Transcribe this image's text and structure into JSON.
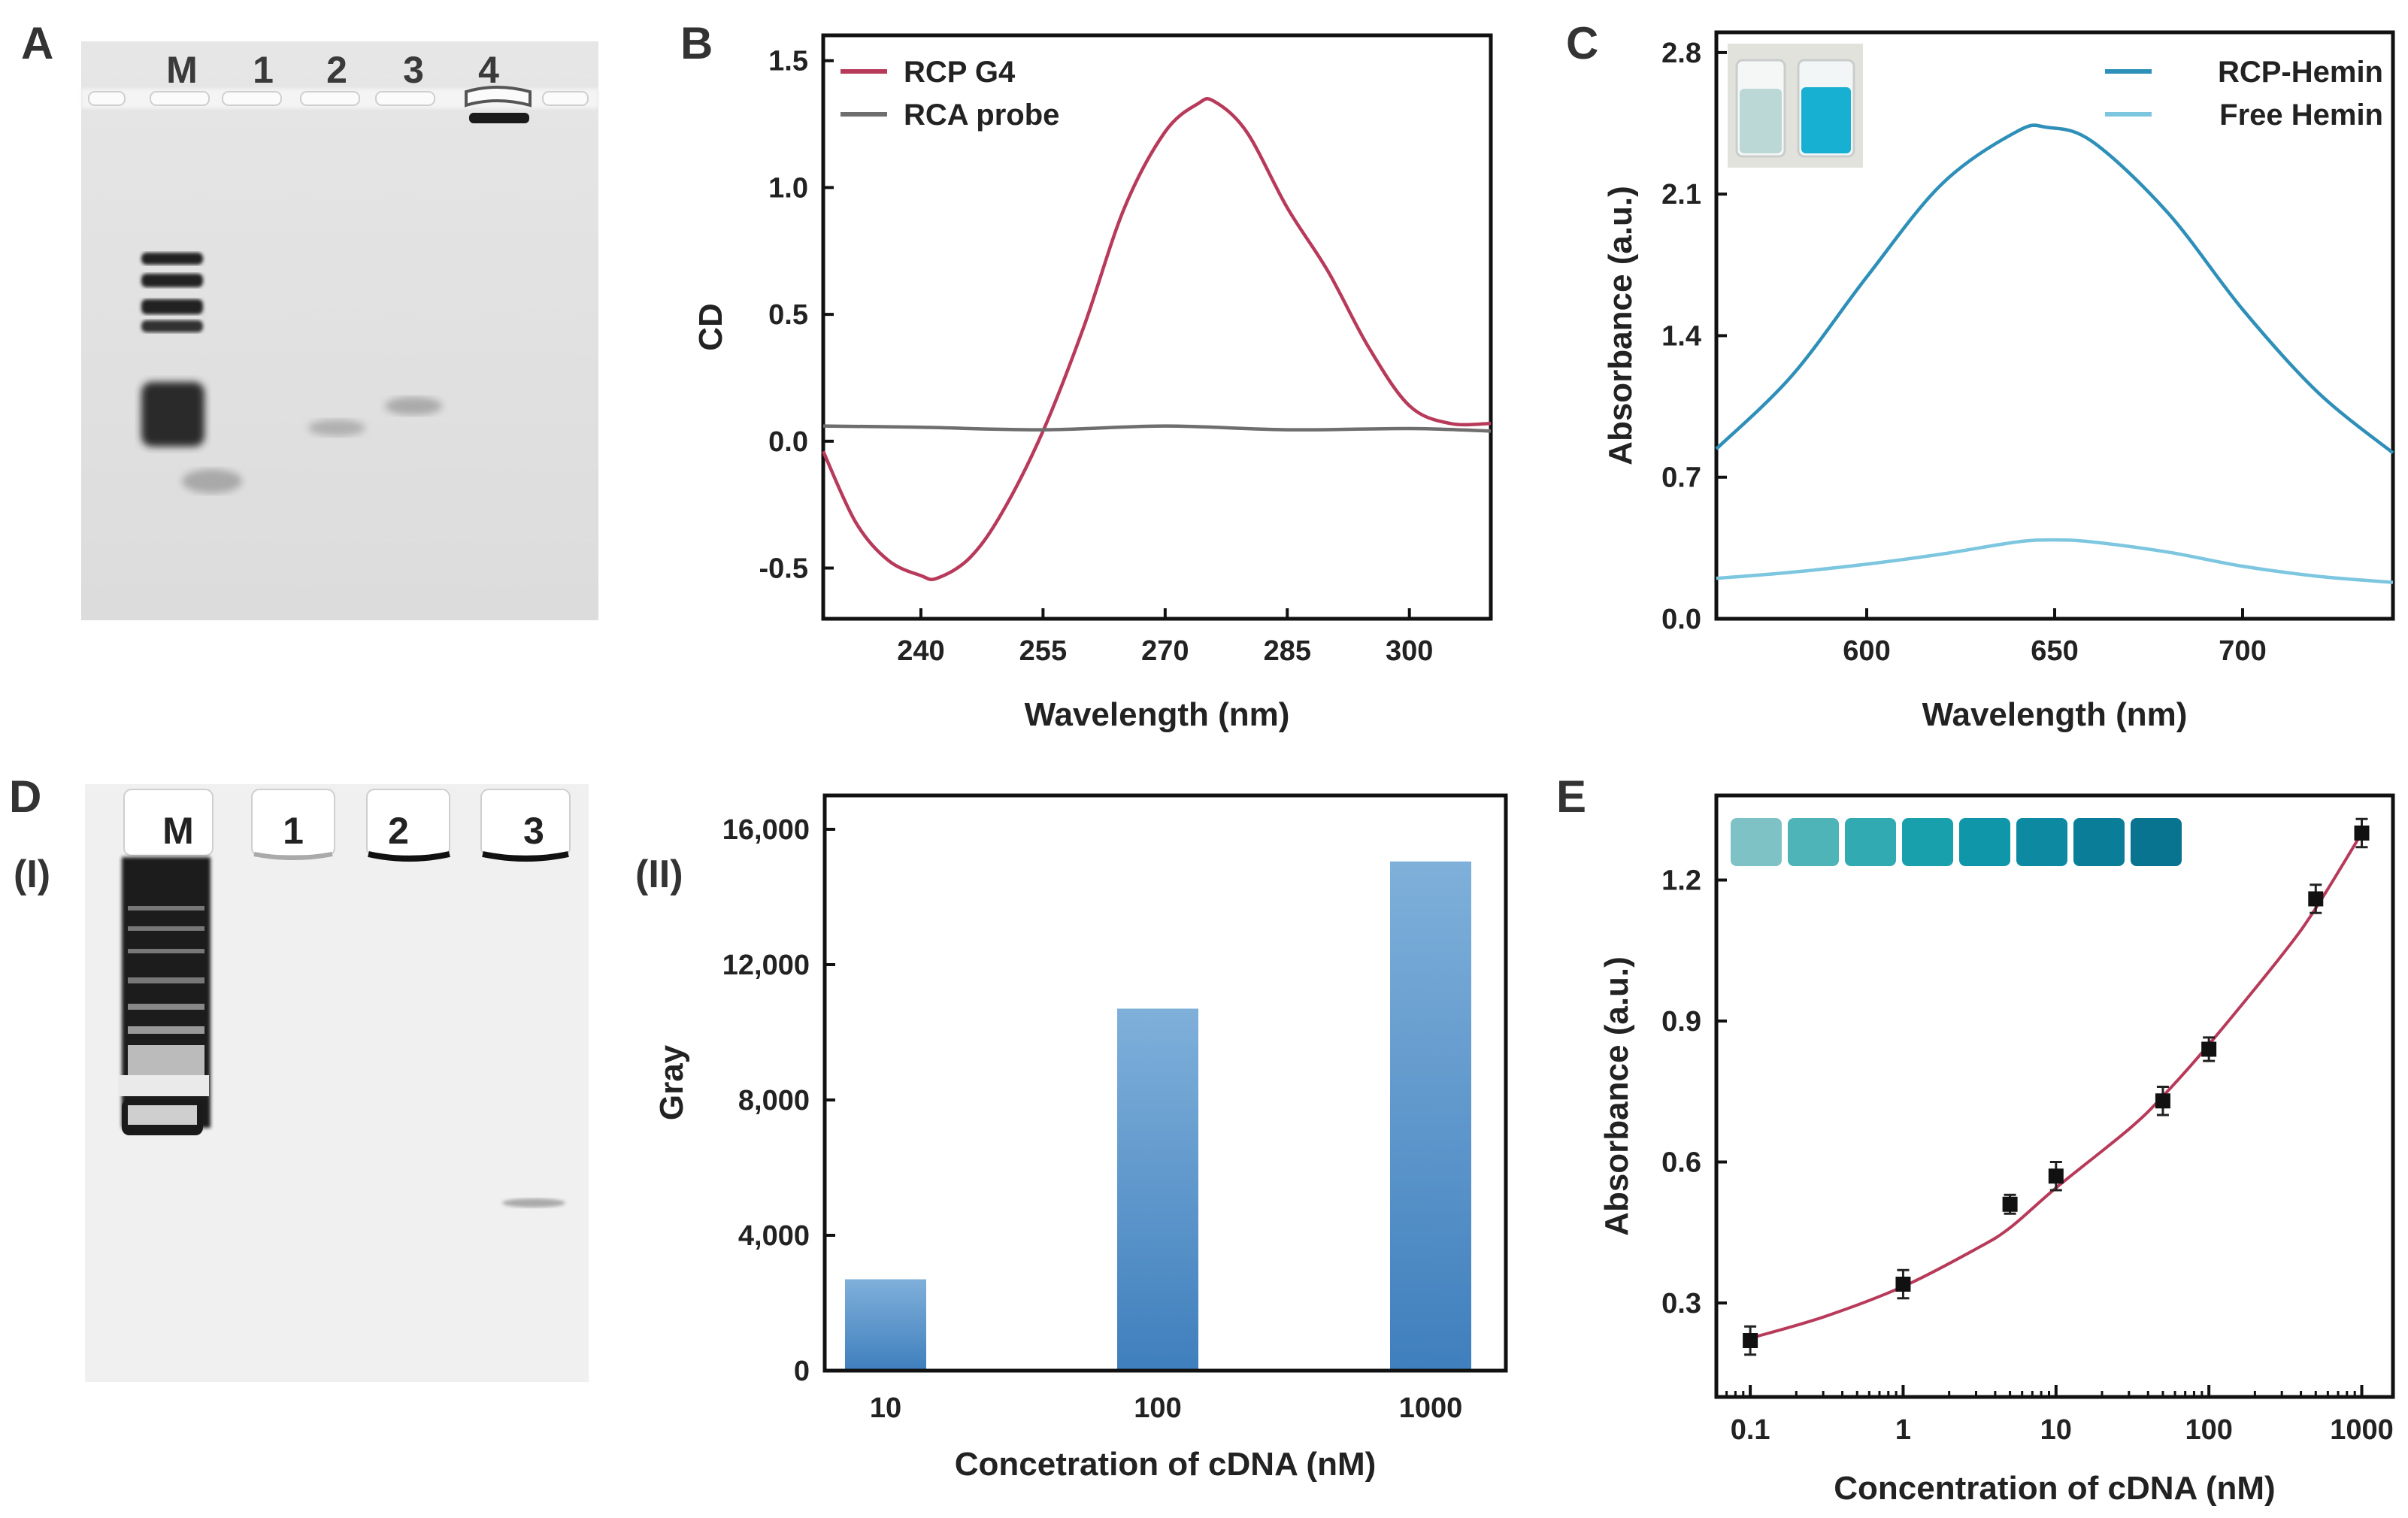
{
  "panel_labels": {
    "A": "A",
    "B": "B",
    "C": "C",
    "D": "D",
    "E": "E",
    "DI": "(I)",
    "DII": "(II)"
  },
  "gel_A": {
    "lanes": [
      "M",
      "1",
      "2",
      "3",
      "4"
    ]
  },
  "gel_D": {
    "lanes": [
      "M",
      "1",
      "2",
      "3"
    ]
  },
  "colors": {
    "rcp_g4": "#b83a5a",
    "rca_probe": "#6e6e6e",
    "rcp_hemin": "#2e8fb8",
    "free_hemin": "#7cc6e0",
    "bar": "#4a8ac4",
    "fit": "#b83a5a",
    "point": "#111111"
  },
  "chart_data": [
    {
      "id": "B",
      "type": "line",
      "xlabel": "Wavelength (nm)",
      "ylabel": "CD",
      "xlim": [
        228,
        310
      ],
      "ylim": [
        -0.7,
        1.6
      ],
      "xticks": [
        240,
        255,
        270,
        285,
        300
      ],
      "xtick_labels": [
        "240",
        "255",
        "270",
        "285",
        "300"
      ],
      "yticks": [
        -0.5,
        0.0,
        0.5,
        1.0,
        1.5
      ],
      "ytick_labels": [
        "-0.5",
        "0.0",
        "0.5",
        "1.0",
        "1.5"
      ],
      "legend_position": "top-left",
      "series": [
        {
          "name": "RCP G4",
          "x": [
            228,
            232,
            236,
            240,
            242,
            246,
            250,
            255,
            260,
            265,
            270,
            274,
            276,
            280,
            285,
            290,
            295,
            300,
            305,
            310
          ],
          "y": [
            -0.04,
            -0.32,
            -0.47,
            -0.53,
            -0.54,
            -0.46,
            -0.28,
            0.04,
            0.45,
            0.92,
            1.22,
            1.33,
            1.34,
            1.22,
            0.92,
            0.67,
            0.37,
            0.14,
            0.07,
            0.07
          ]
        },
        {
          "name": "RCA probe",
          "x": [
            228,
            240,
            255,
            270,
            285,
            300,
            310
          ],
          "y": [
            0.06,
            0.055,
            0.045,
            0.06,
            0.045,
            0.05,
            0.04
          ]
        }
      ]
    },
    {
      "id": "C",
      "type": "line",
      "xlabel": "Wavelength (nm)",
      "ylabel": "Absorbance (a.u.)",
      "xlim": [
        560,
        740
      ],
      "ylim": [
        0,
        2.9
      ],
      "xticks": [
        600,
        650,
        700
      ],
      "xtick_labels": [
        "600",
        "650",
        "700"
      ],
      "yticks": [
        0.0,
        0.7,
        1.4,
        2.1,
        2.8
      ],
      "ytick_labels": [
        "0.0",
        "0.7",
        "1.4",
        "2.1",
        "2.8"
      ],
      "legend_position": "top-right",
      "series": [
        {
          "name": "RCP-Hemin",
          "x": [
            560,
            580,
            600,
            620,
            640,
            648,
            660,
            680,
            700,
            720,
            740
          ],
          "y": [
            0.84,
            1.2,
            1.69,
            2.15,
            2.41,
            2.43,
            2.36,
            2.01,
            1.53,
            1.12,
            0.82
          ]
        },
        {
          "name": "Free Hemin",
          "x": [
            560,
            580,
            600,
            620,
            640,
            650,
            660,
            680,
            700,
            720,
            740
          ],
          "y": [
            0.2,
            0.23,
            0.27,
            0.32,
            0.38,
            0.39,
            0.38,
            0.33,
            0.26,
            0.21,
            0.18
          ]
        }
      ]
    },
    {
      "id": "D-II",
      "type": "bar",
      "xlabel": "Concetration of cDNA (nM)",
      "ylabel": "Gray",
      "categories": [
        "10",
        "100",
        "1000"
      ],
      "values": [
        2700,
        10700,
        15050
      ],
      "ylim": [
        0,
        17000
      ],
      "yticks": [
        0,
        4000,
        8000,
        12000,
        16000
      ],
      "ytick_labels": [
        "0",
        "4,000",
        "8,000",
        "12,000",
        "16,000"
      ]
    },
    {
      "id": "E",
      "type": "scatter",
      "xlabel": "Concentration of cDNA (nM)",
      "ylabel": "Absorbance (a.u.)",
      "xscale": "log",
      "xlim": [
        0.06,
        1600
      ],
      "ylim": [
        0.1,
        1.38
      ],
      "xticks": [
        0.1,
        1,
        10,
        100,
        1000
      ],
      "xtick_labels": [
        "0.1",
        "1",
        "10",
        "100",
        "1000"
      ],
      "yticks": [
        0.3,
        0.6,
        0.9,
        1.2
      ],
      "ytick_labels": [
        "0.3",
        "0.6",
        "0.9",
        "1.2"
      ],
      "points": {
        "x": [
          0.1,
          1,
          5,
          10,
          50,
          100,
          500,
          1000
        ],
        "y": [
          0.22,
          0.34,
          0.51,
          0.57,
          0.73,
          0.84,
          1.16,
          1.3
        ],
        "err": [
          0.03,
          0.03,
          0.02,
          0.03,
          0.03,
          0.025,
          0.03,
          0.03
        ]
      },
      "fit": {
        "x": [
          0.1,
          0.3,
          1,
          3,
          5,
          10,
          30,
          50,
          100,
          300,
          500,
          1000
        ],
        "y": [
          0.225,
          0.27,
          0.335,
          0.415,
          0.46,
          0.545,
          0.67,
          0.74,
          0.85,
          1.04,
          1.14,
          1.3
        ]
      }
    }
  ]
}
